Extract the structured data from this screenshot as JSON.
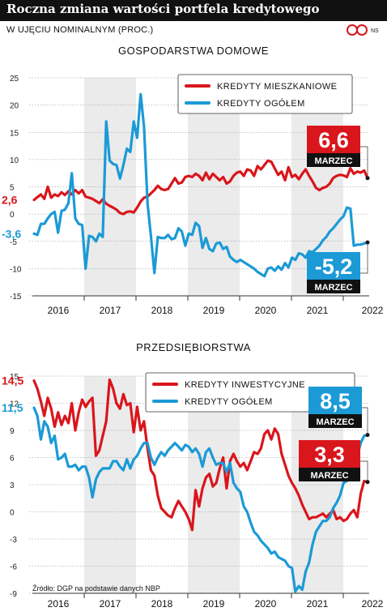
{
  "header": {
    "title": "Roczna zmiana wartości portfela kredytowego",
    "subtitle": "W UJĘCIU NOMINALNYM (PROC.)",
    "logo": "NS"
  },
  "source": "Źródło: DGP na podstawie danych NBP",
  "colors": {
    "red": "#d9161c",
    "blue": "#1b9ad6",
    "shade": "#ebebeb"
  },
  "chart_data": [
    {
      "type": "line",
      "title": "GOSPODARSTWA DOMOWE",
      "x_labels": [
        "2016",
        "2017",
        "2018",
        "2019",
        "2020",
        "2021",
        "2022"
      ],
      "ylim": [
        -15,
        25
      ],
      "yticks": [
        25,
        20,
        15,
        10,
        5,
        0,
        -5,
        -10,
        -15
      ],
      "legend_placement": "top-right",
      "series": [
        {
          "name": "KREDYTY MIESZKANIOWE",
          "color": "#d9161c",
          "start_label": "2,6",
          "values": [
            2.6,
            3.1,
            3.6,
            2.8,
            5.0,
            3.0,
            3.6,
            3.3,
            4.0,
            3.5,
            4.2,
            3.6,
            4.4,
            3.8,
            4.4,
            3.2,
            3.0,
            2.8,
            2.4,
            2.0,
            2.7,
            1.9,
            1.5,
            1.2,
            0.8,
            0.2,
            0.0,
            0.4,
            0.5,
            0.3,
            1.2,
            2.3,
            3.0,
            3.2,
            3.8,
            4.4,
            5.2,
            4.6,
            4.4,
            4.6,
            5.6,
            6.6,
            5.6,
            5.8,
            6.8,
            7.0,
            6.8,
            7.4,
            7.0,
            6.2,
            7.6,
            6.4,
            7.4,
            6.8,
            6.2,
            6.8,
            5.6,
            6.0,
            7.0,
            7.6,
            7.8,
            7.0,
            8.2,
            8.0,
            7.0,
            8.8,
            8.2,
            9.0,
            9.8,
            9.6,
            8.4,
            7.2,
            7.8,
            6.2,
            8.6,
            6.8,
            7.2,
            6.4,
            7.4,
            8.2,
            7.0,
            6.0,
            4.8,
            4.4,
            4.8,
            5.0,
            5.6,
            6.6,
            7.0,
            7.2,
            7.1,
            6.8,
            8.4,
            7.4,
            7.8,
            7.6,
            8.0,
            6.6
          ],
          "callout": {
            "value": "6,6",
            "label": "MARZEC"
          }
        },
        {
          "name": "KREDYTY OGÓŁEM",
          "color": "#1b9ad6",
          "start_label": "-3,6",
          "values": [
            -3.6,
            -3.8,
            -1.8,
            -1.8,
            -0.8,
            0.0,
            0.4,
            -3.4,
            0.6,
            0.8,
            2.0,
            7.5,
            -0.8,
            -1.8,
            -2.0,
            -10.0,
            -4.0,
            -4.2,
            -5.0,
            -3.6,
            -4.2,
            17.0,
            9.8,
            9.2,
            9.0,
            6.5,
            9.0,
            12.0,
            11.4,
            17.0,
            14.0,
            22.0,
            16.0,
            2.0,
            -4.0,
            -10.8,
            -4.2,
            -4.4,
            -4.4,
            -3.8,
            -4.6,
            -4.4,
            -2.6,
            -3.2,
            -5.8,
            -3.6,
            -3.8,
            -1.6,
            -2.2,
            -6.2,
            -4.4,
            -6.4,
            -6.8,
            -5.4,
            -5.2,
            -6.4,
            -6.0,
            -7.8,
            -8.4,
            -8.8,
            -8.4,
            -8.8,
            -9.2,
            -9.6,
            -10.0,
            -10.6,
            -11.0,
            -11.4,
            -10.0,
            -9.8,
            -10.4,
            -9.6,
            -10.2,
            -9.0,
            -9.8,
            -8.0,
            -8.4,
            -7.2,
            -7.4,
            -8.0,
            -6.8,
            -7.0,
            -6.4,
            -5.8,
            -4.8,
            -4.2,
            -3.2,
            -2.6,
            -1.8,
            -1.0,
            -0.4,
            1.2,
            1.0,
            -5.8,
            -5.6,
            -5.6,
            -5.4,
            -5.2
          ],
          "callout": {
            "value": "-5,2",
            "label": "MARZEC"
          }
        }
      ]
    },
    {
      "type": "line",
      "title": "PRZEDSIĘBIORSTWA",
      "x_labels": [
        "2016",
        "2017",
        "2018",
        "2019",
        "2020",
        "2021",
        "2022"
      ],
      "ylim": [
        -9,
        15
      ],
      "yticks": [
        15,
        12,
        9,
        6,
        3,
        0,
        -3,
        -6,
        -9
      ],
      "legend_placement": "top-right",
      "series": [
        {
          "name": "KREDYTY INWESTYCYJNE",
          "color": "#d9161c",
          "start_label": "14,5",
          "values": [
            14.5,
            13.6,
            12.2,
            10.6,
            12.6,
            11.4,
            9.4,
            11.0,
            9.6,
            10.6,
            9.8,
            12.0,
            9.0,
            11.0,
            12.4,
            11.6,
            12.2,
            12.6,
            6.2,
            6.8,
            8.4,
            10.0,
            14.6,
            13.6,
            12.0,
            11.4,
            13.0,
            11.8,
            12.0,
            8.8,
            11.6,
            9.0,
            10.0,
            7.0,
            4.6,
            4.0,
            1.8,
            0.4,
            0.0,
            -0.4,
            -0.6,
            0.4,
            1.2,
            0.6,
            0.0,
            -0.8,
            -2.0,
            2.4,
            0.6,
            2.6,
            3.8,
            4.2,
            2.8,
            3.2,
            4.8,
            6.0,
            2.6,
            5.6,
            6.4,
            5.6,
            5.0,
            5.4,
            4.6,
            5.6,
            6.6,
            6.4,
            7.0,
            8.6,
            9.0,
            8.0,
            9.2,
            8.6,
            6.4,
            5.2,
            4.0,
            3.2,
            2.6,
            1.8,
            0.8,
            0.0,
            -0.8,
            -0.6,
            -0.6,
            -0.4,
            -0.2,
            -0.6,
            -0.2,
            0.2,
            -0.8,
            -0.6,
            -1.0,
            -0.8,
            -0.2,
            0.2,
            -0.6,
            2.0,
            3.4,
            3.3
          ],
          "callout": {
            "value": "3,3",
            "label": "MARZEC"
          }
        },
        {
          "name": "KREDYTY OGÓŁEM",
          "color": "#1b9ad6",
          "start_label": "11,5",
          "values": [
            11.5,
            10.6,
            8.0,
            10.0,
            9.4,
            7.6,
            8.4,
            5.8,
            6.0,
            6.4,
            5.0,
            5.0,
            5.2,
            4.6,
            5.0,
            5.0,
            3.8,
            1.6,
            3.6,
            4.4,
            4.8,
            4.8,
            4.8,
            5.6,
            5.6,
            5.0,
            4.6,
            5.8,
            4.8,
            5.8,
            6.2,
            7.0,
            7.6,
            7.6,
            6.0,
            5.2,
            6.0,
            6.6,
            6.2,
            6.8,
            7.2,
            7.6,
            7.2,
            6.8,
            7.4,
            7.2,
            6.6,
            7.0,
            6.4,
            5.0,
            6.6,
            7.0,
            6.0,
            5.2,
            5.4,
            5.4,
            4.4,
            5.4,
            3.2,
            2.6,
            2.2,
            0.6,
            0.0,
            -1.2,
            -2.2,
            -2.6,
            -3.2,
            -3.6,
            -4.0,
            -4.6,
            -4.4,
            -5.0,
            -5.2,
            -5.4,
            -6.0,
            -6.2,
            -8.8,
            -8.2,
            -8.6,
            -6.6,
            -5.6,
            -3.6,
            -2.2,
            -1.6,
            -1.0,
            -1.0,
            -0.6,
            0.4,
            1.0,
            1.8,
            3.2,
            3.4,
            5.0,
            4.6,
            6.2,
            7.6,
            8.4,
            8.5
          ],
          "callout": {
            "value": "8,5",
            "label": "MARZEC"
          }
        }
      ]
    }
  ]
}
